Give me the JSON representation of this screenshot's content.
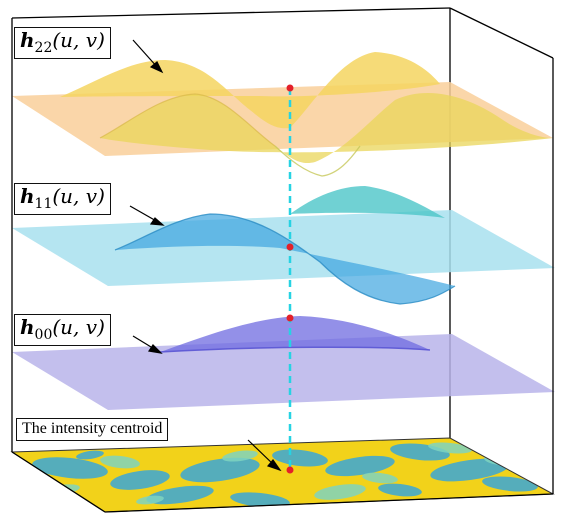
{
  "layers": [
    {
      "id": "h22",
      "symbol": "h",
      "subscript": "22",
      "args": "(u, v)",
      "surface_color": "#f5d35a",
      "plane_color": "#f9cf9a"
    },
    {
      "id": "h11",
      "symbol": "h",
      "subscript": "11",
      "args": "(u, v)",
      "surface_color": "#4fc0d6",
      "plane_color": "#a8e0ee"
    },
    {
      "id": "h00",
      "symbol": "h",
      "subscript": "00",
      "args": "(u, v)",
      "surface_color": "#7a78e0",
      "plane_color": "#b9b4ea"
    }
  ],
  "base": {
    "label": "The intensity centroid",
    "colors": [
      "#f2d21a",
      "#3aa7d8",
      "#7fd3c0"
    ]
  },
  "colors": {
    "axis_line": "#26d3e3",
    "centroid_point": "#e3202a",
    "box_edge": "#000000"
  }
}
